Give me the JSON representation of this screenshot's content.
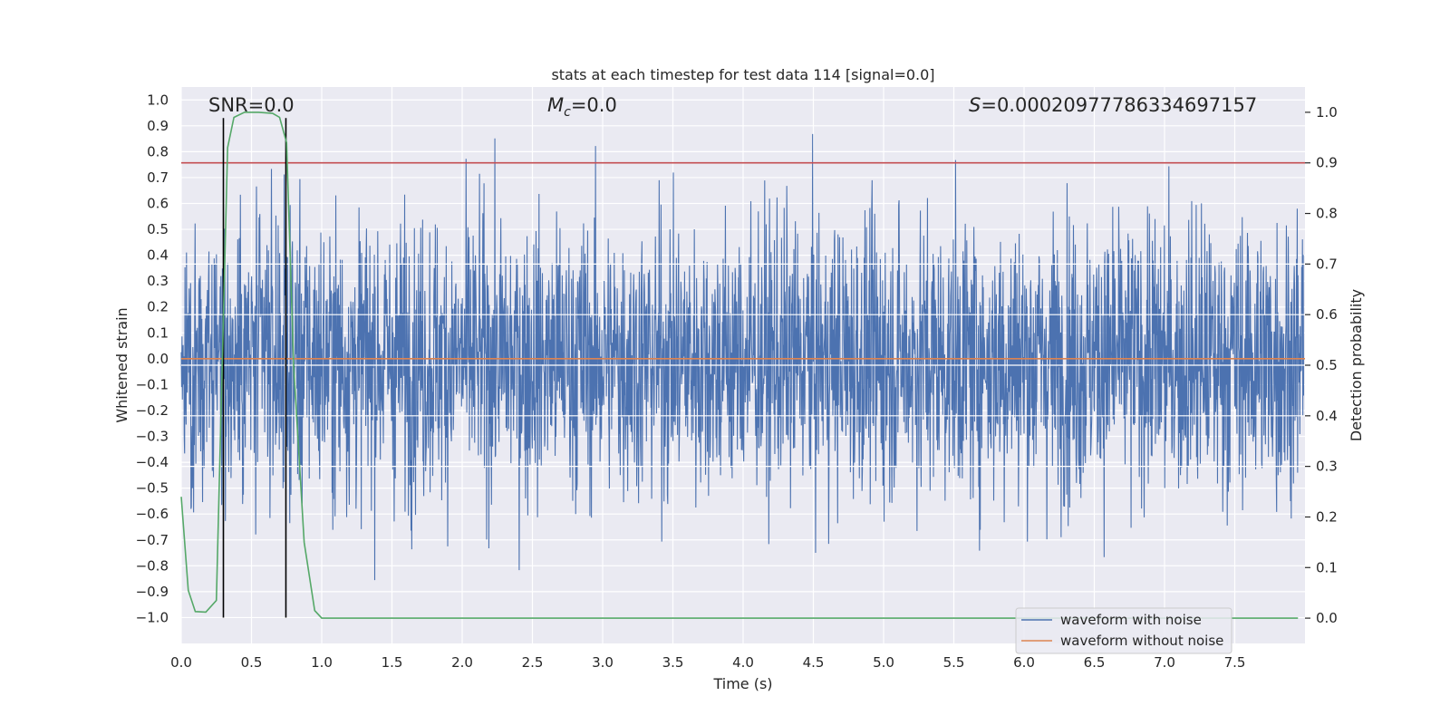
{
  "chart_data": {
    "type": "line",
    "title": "stats at each timestep for test data 114 [signal=0.0]",
    "xlabel": "Time (s)",
    "ylabel": "Whitened strain",
    "ylabel_right": "Detection probability",
    "xlim": [
      0.0,
      8.0
    ],
    "ylim": [
      -1.1,
      1.05
    ],
    "ylim_right": [
      -0.05,
      1.05
    ],
    "x_ticks": [
      "0.0",
      "0.5",
      "1.0",
      "1.5",
      "2.0",
      "2.5",
      "3.0",
      "3.5",
      "4.0",
      "4.5",
      "5.0",
      "5.5",
      "6.0",
      "6.5",
      "7.0",
      "7.5"
    ],
    "x_tick_values": [
      0.0,
      0.5,
      1.0,
      1.5,
      2.0,
      2.5,
      3.0,
      3.5,
      4.0,
      4.5,
      5.0,
      5.5,
      6.0,
      6.5,
      7.0,
      7.5
    ],
    "y_ticks": [
      "1.0",
      "0.9",
      "0.8",
      "0.7",
      "0.6",
      "0.5",
      "0.4",
      "0.3",
      "0.2",
      "0.1",
      "0.0",
      "−0.1",
      "−0.2",
      "−0.3",
      "−0.4",
      "−0.5",
      "−0.6",
      "−0.7",
      "−0.8",
      "−0.9",
      "−1.0"
    ],
    "y_tick_values": [
      1.0,
      0.9,
      0.8,
      0.7,
      0.6,
      0.5,
      0.4,
      0.3,
      0.2,
      0.1,
      0.0,
      -0.1,
      -0.2,
      -0.3,
      -0.4,
      -0.5,
      -0.6,
      -0.7,
      -0.8,
      -0.9,
      -1.0
    ],
    "y_right_ticks": [
      "1.0",
      "0.9",
      "0.8",
      "0.7",
      "0.6",
      "0.5",
      "0.4",
      "0.3",
      "0.2",
      "0.1",
      "0.0"
    ],
    "y_right_tick_values": [
      1.0,
      0.9,
      0.8,
      0.7,
      0.6,
      0.5,
      0.4,
      0.3,
      0.2,
      0.1,
      0.0
    ],
    "annotations": {
      "snr": "SNR=0.0",
      "mc_symbol": "M",
      "mc_sub": "c",
      "mc_value": "=0.0",
      "s_symbol": "S",
      "s_value": "=0.00020977786334697157"
    },
    "threshold_right": 0.9,
    "vertical_lines_x": [
      0.3,
      0.745
    ],
    "colors": {
      "background": "#eaeaf2",
      "grid": "#ffffff",
      "noise": "#4c72b0",
      "clean": "#dd8452",
      "probability": "#55a868",
      "threshold": "#c44e52",
      "vline": "#000000"
    },
    "series": [
      {
        "name": "waveform with noise",
        "axis": "left",
        "description": "dense noise trace, roughly symmetric around 0, peaks up to ~0.93 and down to ~-1.0"
      },
      {
        "name": "waveform without noise",
        "axis": "left",
        "x": [
          0.0,
          8.0
        ],
        "y": [
          0.0,
          0.0
        ]
      },
      {
        "name": "detection probability",
        "axis": "right",
        "x": [
          0.0,
          0.05,
          0.1,
          0.175,
          0.25,
          0.33,
          0.375,
          0.45,
          0.55,
          0.65,
          0.7,
          0.75,
          0.8,
          0.875,
          0.95,
          1.0,
          7.95
        ],
        "y": [
          0.24,
          0.055,
          0.013,
          0.012,
          0.035,
          0.93,
          0.99,
          1.0,
          1.0,
          0.998,
          0.99,
          0.94,
          0.5,
          0.15,
          0.015,
          0.0,
          0.0
        ]
      }
    ],
    "legend": {
      "position": "lower-right",
      "entries": [
        "waveform with noise",
        "waveform without noise"
      ]
    }
  }
}
